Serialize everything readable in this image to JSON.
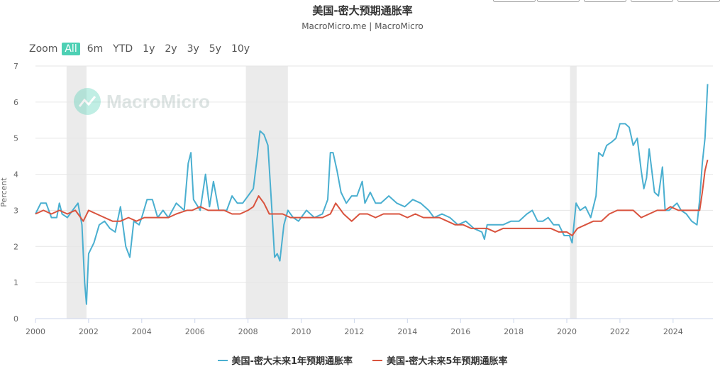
{
  "header": {
    "title": "美国-密大预期通胀率",
    "subtitle": "MacroMicro.me | MacroMicro"
  },
  "zoom": {
    "label": "Zoom",
    "buttons": [
      "All",
      "6m",
      "YTD",
      "1y",
      "2y",
      "3y",
      "5y",
      "10y"
    ],
    "active": "All"
  },
  "watermark": "MacroMicro",
  "colors": {
    "series1": "#4aafd0",
    "series2": "#d9533e",
    "recession": "#ebebeb",
    "grid": "#e6e6e6"
  },
  "chart_data": {
    "type": "line",
    "title": "美国-密大预期通胀率",
    "subtitle": "MacroMicro.me | MacroMicro",
    "xlabel": "",
    "ylabel": "Percent",
    "xlim": [
      2000,
      2025.5
    ],
    "ylim": [
      0,
      7
    ],
    "xticks": [
      "2000",
      "2002",
      "2004",
      "2006",
      "2008",
      "2010",
      "2012",
      "2014",
      "2016",
      "2018",
      "2020",
      "2022",
      "2024"
    ],
    "yticks": [
      "0",
      "1",
      "2",
      "3",
      "4",
      "5",
      "6",
      "7"
    ],
    "recessions": [
      [
        2001.17,
        2001.92
      ],
      [
        2007.92,
        2009.5
      ],
      [
        2020.12,
        2020.37
      ]
    ],
    "grid": true,
    "legend_position": "bottom",
    "series": [
      {
        "name": "美国-密大未来1年预期通胀率",
        "points": [
          [
            2000.0,
            2.9
          ],
          [
            2000.2,
            3.2
          ],
          [
            2000.4,
            3.2
          ],
          [
            2000.6,
            2.8
          ],
          [
            2000.8,
            2.8
          ],
          [
            2000.9,
            3.2
          ],
          [
            2001.0,
            2.9
          ],
          [
            2001.2,
            2.8
          ],
          [
            2001.4,
            3.0
          ],
          [
            2001.6,
            3.2
          ],
          [
            2001.75,
            2.6
          ],
          [
            2001.85,
            1.0
          ],
          [
            2001.92,
            0.4
          ],
          [
            2002.0,
            1.8
          ],
          [
            2002.2,
            2.1
          ],
          [
            2002.4,
            2.6
          ],
          [
            2002.6,
            2.7
          ],
          [
            2002.8,
            2.5
          ],
          [
            2003.0,
            2.4
          ],
          [
            2003.2,
            3.1
          ],
          [
            2003.4,
            2.0
          ],
          [
            2003.55,
            1.7
          ],
          [
            2003.7,
            2.7
          ],
          [
            2003.9,
            2.6
          ],
          [
            2004.0,
            2.8
          ],
          [
            2004.2,
            3.3
          ],
          [
            2004.4,
            3.3
          ],
          [
            2004.6,
            2.8
          ],
          [
            2004.8,
            3.0
          ],
          [
            2005.0,
            2.8
          ],
          [
            2005.3,
            3.2
          ],
          [
            2005.6,
            3.0
          ],
          [
            2005.75,
            4.3
          ],
          [
            2005.85,
            4.6
          ],
          [
            2005.95,
            3.3
          ],
          [
            2006.2,
            3.0
          ],
          [
            2006.4,
            4.0
          ],
          [
            2006.55,
            3.1
          ],
          [
            2006.7,
            3.8
          ],
          [
            2006.9,
            3.0
          ],
          [
            2007.2,
            3.0
          ],
          [
            2007.4,
            3.4
          ],
          [
            2007.6,
            3.2
          ],
          [
            2007.8,
            3.2
          ],
          [
            2008.0,
            3.4
          ],
          [
            2008.2,
            3.6
          ],
          [
            2008.35,
            4.5
          ],
          [
            2008.45,
            5.2
          ],
          [
            2008.6,
            5.1
          ],
          [
            2008.75,
            4.8
          ],
          [
            2008.9,
            3.0
          ],
          [
            2009.0,
            1.7
          ],
          [
            2009.1,
            1.8
          ],
          [
            2009.2,
            1.6
          ],
          [
            2009.35,
            2.6
          ],
          [
            2009.5,
            3.0
          ],
          [
            2009.7,
            2.8
          ],
          [
            2009.9,
            2.7
          ],
          [
            2010.2,
            3.0
          ],
          [
            2010.5,
            2.8
          ],
          [
            2010.8,
            2.9
          ],
          [
            2011.0,
            3.3
          ],
          [
            2011.1,
            4.6
          ],
          [
            2011.2,
            4.6
          ],
          [
            2011.35,
            4.1
          ],
          [
            2011.5,
            3.5
          ],
          [
            2011.7,
            3.2
          ],
          [
            2011.9,
            3.4
          ],
          [
            2012.1,
            3.4
          ],
          [
            2012.3,
            3.8
          ],
          [
            2012.4,
            3.2
          ],
          [
            2012.6,
            3.5
          ],
          [
            2012.8,
            3.2
          ],
          [
            2013.0,
            3.2
          ],
          [
            2013.3,
            3.4
          ],
          [
            2013.6,
            3.2
          ],
          [
            2013.9,
            3.1
          ],
          [
            2014.2,
            3.3
          ],
          [
            2014.5,
            3.2
          ],
          [
            2014.8,
            3.0
          ],
          [
            2015.0,
            2.8
          ],
          [
            2015.3,
            2.9
          ],
          [
            2015.6,
            2.8
          ],
          [
            2015.9,
            2.6
          ],
          [
            2016.2,
            2.7
          ],
          [
            2016.5,
            2.5
          ],
          [
            2016.8,
            2.4
          ],
          [
            2016.9,
            2.2
          ],
          [
            2017.0,
            2.6
          ],
          [
            2017.3,
            2.6
          ],
          [
            2017.6,
            2.6
          ],
          [
            2017.9,
            2.7
          ],
          [
            2018.2,
            2.7
          ],
          [
            2018.5,
            2.9
          ],
          [
            2018.7,
            3.0
          ],
          [
            2018.9,
            2.7
          ],
          [
            2019.1,
            2.7
          ],
          [
            2019.3,
            2.8
          ],
          [
            2019.5,
            2.6
          ],
          [
            2019.7,
            2.6
          ],
          [
            2019.9,
            2.3
          ],
          [
            2020.1,
            2.3
          ],
          [
            2020.2,
            2.1
          ],
          [
            2020.35,
            3.2
          ],
          [
            2020.5,
            3.0
          ],
          [
            2020.7,
            3.1
          ],
          [
            2020.9,
            2.8
          ],
          [
            2021.1,
            3.4
          ],
          [
            2021.2,
            4.6
          ],
          [
            2021.35,
            4.5
          ],
          [
            2021.5,
            4.8
          ],
          [
            2021.7,
            4.9
          ],
          [
            2021.85,
            5.0
          ],
          [
            2022.0,
            5.4
          ],
          [
            2022.2,
            5.4
          ],
          [
            2022.35,
            5.3
          ],
          [
            2022.5,
            4.8
          ],
          [
            2022.65,
            5.0
          ],
          [
            2022.8,
            4.1
          ],
          [
            2022.9,
            3.6
          ],
          [
            2023.0,
            3.9
          ],
          [
            2023.1,
            4.7
          ],
          [
            2023.3,
            3.5
          ],
          [
            2023.45,
            3.4
          ],
          [
            2023.6,
            4.2
          ],
          [
            2023.7,
            3.0
          ],
          [
            2023.85,
            3.0
          ],
          [
            2024.0,
            3.1
          ],
          [
            2024.15,
            3.2
          ],
          [
            2024.3,
            3.0
          ],
          [
            2024.5,
            2.9
          ],
          [
            2024.7,
            2.7
          ],
          [
            2024.9,
            2.6
          ],
          [
            2025.0,
            3.3
          ],
          [
            2025.1,
            4.3
          ],
          [
            2025.2,
            5.0
          ],
          [
            2025.3,
            6.5
          ]
        ]
      },
      {
        "name": "美国-密大未来5年预期通胀率",
        "points": [
          [
            2000.0,
            2.9
          ],
          [
            2000.3,
            3.0
          ],
          [
            2000.6,
            2.9
          ],
          [
            2000.9,
            3.0
          ],
          [
            2001.2,
            2.9
          ],
          [
            2001.5,
            3.0
          ],
          [
            2001.8,
            2.7
          ],
          [
            2002.0,
            3.0
          ],
          [
            2002.3,
            2.9
          ],
          [
            2002.6,
            2.8
          ],
          [
            2002.9,
            2.7
          ],
          [
            2003.2,
            2.7
          ],
          [
            2003.5,
            2.8
          ],
          [
            2003.8,
            2.7
          ],
          [
            2004.1,
            2.8
          ],
          [
            2004.4,
            2.8
          ],
          [
            2004.7,
            2.8
          ],
          [
            2005.0,
            2.8
          ],
          [
            2005.3,
            2.9
          ],
          [
            2005.7,
            3.0
          ],
          [
            2005.9,
            3.0
          ],
          [
            2006.2,
            3.1
          ],
          [
            2006.5,
            3.0
          ],
          [
            2006.8,
            3.0
          ],
          [
            2007.1,
            3.0
          ],
          [
            2007.4,
            2.9
          ],
          [
            2007.7,
            2.9
          ],
          [
            2008.0,
            3.0
          ],
          [
            2008.2,
            3.1
          ],
          [
            2008.4,
            3.4
          ],
          [
            2008.6,
            3.2
          ],
          [
            2008.8,
            2.9
          ],
          [
            2009.0,
            2.9
          ],
          [
            2009.3,
            2.9
          ],
          [
            2009.6,
            2.8
          ],
          [
            2009.9,
            2.8
          ],
          [
            2010.2,
            2.8
          ],
          [
            2010.5,
            2.8
          ],
          [
            2010.8,
            2.8
          ],
          [
            2011.1,
            2.9
          ],
          [
            2011.3,
            3.2
          ],
          [
            2011.6,
            2.9
          ],
          [
            2011.9,
            2.7
          ],
          [
            2012.2,
            2.9
          ],
          [
            2012.5,
            2.9
          ],
          [
            2012.8,
            2.8
          ],
          [
            2013.1,
            2.9
          ],
          [
            2013.4,
            2.9
          ],
          [
            2013.7,
            2.9
          ],
          [
            2014.0,
            2.8
          ],
          [
            2014.3,
            2.9
          ],
          [
            2014.6,
            2.8
          ],
          [
            2014.9,
            2.8
          ],
          [
            2015.2,
            2.8
          ],
          [
            2015.5,
            2.7
          ],
          [
            2015.8,
            2.6
          ],
          [
            2016.1,
            2.6
          ],
          [
            2016.4,
            2.5
          ],
          [
            2016.7,
            2.5
          ],
          [
            2017.0,
            2.5
          ],
          [
            2017.3,
            2.4
          ],
          [
            2017.6,
            2.5
          ],
          [
            2017.9,
            2.5
          ],
          [
            2018.2,
            2.5
          ],
          [
            2018.5,
            2.5
          ],
          [
            2018.8,
            2.5
          ],
          [
            2019.1,
            2.5
          ],
          [
            2019.4,
            2.5
          ],
          [
            2019.7,
            2.4
          ],
          [
            2020.0,
            2.4
          ],
          [
            2020.2,
            2.3
          ],
          [
            2020.4,
            2.5
          ],
          [
            2020.7,
            2.6
          ],
          [
            2021.0,
            2.7
          ],
          [
            2021.3,
            2.7
          ],
          [
            2021.6,
            2.9
          ],
          [
            2021.9,
            3.0
          ],
          [
            2022.2,
            3.0
          ],
          [
            2022.5,
            3.0
          ],
          [
            2022.8,
            2.8
          ],
          [
            2023.1,
            2.9
          ],
          [
            2023.4,
            3.0
          ],
          [
            2023.7,
            3.0
          ],
          [
            2023.9,
            3.1
          ],
          [
            2024.2,
            3.0
          ],
          [
            2024.5,
            3.0
          ],
          [
            2024.8,
            3.0
          ],
          [
            2025.0,
            3.0
          ],
          [
            2025.1,
            3.5
          ],
          [
            2025.2,
            4.1
          ],
          [
            2025.3,
            4.4
          ]
        ]
      }
    ]
  }
}
